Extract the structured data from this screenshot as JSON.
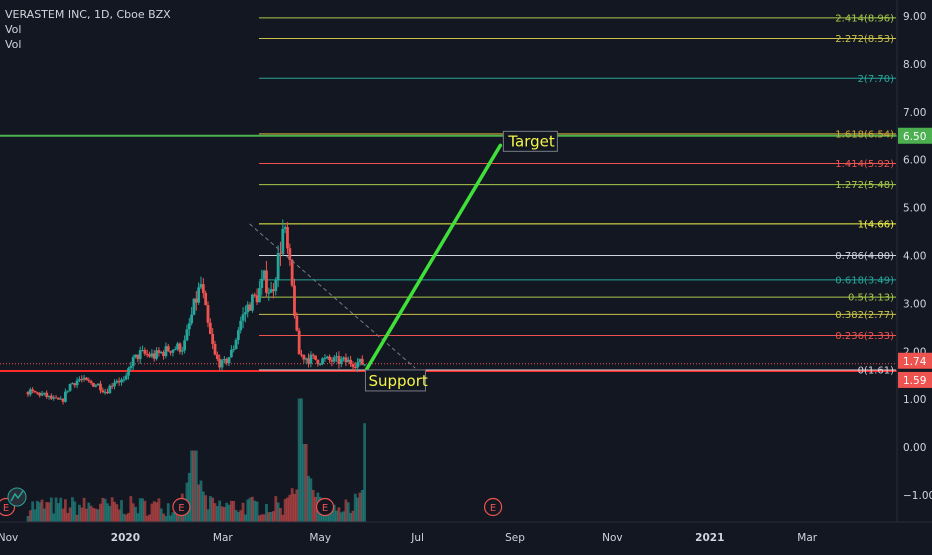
{
  "header": {
    "symbol_line": "VERASTEM INC, 1D, Cboe BZX",
    "vol_1": "Vol",
    "vol_2": "Vol"
  },
  "colors": {
    "background": "#131722",
    "up": "#26a69a",
    "down": "#ef5350",
    "target_line": "#3fe03a",
    "support_line": "#ff2a2a",
    "axis_text": "#d1d4dc"
  },
  "annotations": {
    "target_label": "Target",
    "support_label": "Support"
  },
  "chart_data": {
    "type": "candlestick",
    "symbol": "VERASTEM INC",
    "interval": "1D",
    "exchange": "Cboe BZX",
    "y_ticks": [
      "9.00",
      "8.00",
      "7.00",
      "6.00",
      "5.00",
      "4.00",
      "3.00",
      "2.00",
      "1.00",
      "0.00",
      "−1.00"
    ],
    "x_ticks": [
      "Nov",
      "2020",
      "Mar",
      "May",
      "Jul",
      "Sep",
      "Nov",
      "2021",
      "Mar"
    ],
    "ylim": [
      -1.5,
      9.3
    ],
    "price_badges": [
      {
        "text": "6.50",
        "value": 6.5,
        "color": "#4caf50"
      },
      {
        "text": "1.74",
        "value": 1.74,
        "color": "#ef5350"
      },
      {
        "text": "1.59",
        "value": 1.59,
        "color": "#ef5350"
      }
    ],
    "fib_levels": [
      {
        "label": "2.414(8.96)",
        "value": 8.96,
        "color": "#a7c94a"
      },
      {
        "label": "2.272(8.53)",
        "value": 8.53,
        "color": "#c9c14a"
      },
      {
        "label": "2(7.70)",
        "value": 7.7,
        "color": "#26a69a"
      },
      {
        "label": "1.618(6.54)",
        "value": 6.54,
        "color": "#d4a83a"
      },
      {
        "label": "1.414(5.92)",
        "value": 5.92,
        "color": "#ef5350"
      },
      {
        "label": "1.272(5.48)",
        "value": 5.48,
        "color": "#a7c94a"
      },
      {
        "label": "1(4.66)",
        "value": 4.66,
        "color": "#f5f54a"
      },
      {
        "label": "0.786(4.00)",
        "value": 4.0,
        "color": "#d1d4dc"
      },
      {
        "label": "0.618(3.49)",
        "value": 3.49,
        "color": "#26a69a"
      },
      {
        "label": "0.5(3.13)",
        "value": 3.13,
        "color": "#a7c94a"
      },
      {
        "label": "0.382(2.77)",
        "value": 2.77,
        "color": "#c9c14a"
      },
      {
        "label": "0.236(2.33)",
        "value": 2.33,
        "color": "#ef5350"
      },
      {
        "label": "0(1.61)",
        "value": 1.61,
        "color": "#d1d4dc"
      }
    ],
    "horizontal_lines": [
      {
        "value": 6.5,
        "color": "#4caf50"
      },
      {
        "value": 1.59,
        "color": "#ff2a2a"
      }
    ],
    "trend_arrow": {
      "from": {
        "month": 6.95,
        "price": 1.62
      },
      "to": {
        "month": 9.7,
        "price": 6.3
      }
    },
    "dashed_trendline": {
      "from": {
        "month": 4.55,
        "price": 4.66
      },
      "to": {
        "month": 7.95,
        "price": 1.65
      }
    },
    "price_series": [
      {
        "month": 0.0,
        "price": 1.15
      },
      {
        "month": 0.3,
        "price": 1.1
      },
      {
        "month": 0.5,
        "price": 1.0
      },
      {
        "month": 0.7,
        "price": 0.95
      },
      {
        "month": 0.85,
        "price": 1.3
      },
      {
        "month": 1.05,
        "price": 1.42
      },
      {
        "month": 1.2,
        "price": 1.35
      },
      {
        "month": 1.45,
        "price": 1.3
      },
      {
        "month": 1.6,
        "price": 1.15
      },
      {
        "month": 1.8,
        "price": 1.42
      },
      {
        "month": 2.0,
        "price": 1.35
      },
      {
        "month": 2.1,
        "price": 1.75
      },
      {
        "month": 2.3,
        "price": 1.95
      },
      {
        "month": 2.6,
        "price": 1.9
      },
      {
        "month": 2.9,
        "price": 2.05
      },
      {
        "month": 3.2,
        "price": 2.1
      },
      {
        "month": 3.4,
        "price": 2.9
      },
      {
        "month": 3.55,
        "price": 3.4
      },
      {
        "month": 3.7,
        "price": 2.5
      },
      {
        "month": 3.85,
        "price": 1.85
      },
      {
        "month": 4.0,
        "price": 1.7
      },
      {
        "month": 4.2,
        "price": 2.0
      },
      {
        "month": 4.35,
        "price": 2.6
      },
      {
        "month": 4.55,
        "price": 3.0
      },
      {
        "month": 4.7,
        "price": 3.15
      },
      {
        "month": 4.85,
        "price": 3.5
      },
      {
        "month": 5.0,
        "price": 3.2
      },
      {
        "month": 5.15,
        "price": 4.0
      },
      {
        "month": 5.25,
        "price": 4.6
      },
      {
        "month": 5.35,
        "price": 3.9
      },
      {
        "month": 5.45,
        "price": 3.1
      },
      {
        "month": 5.55,
        "price": 1.95
      },
      {
        "month": 5.75,
        "price": 1.85
      },
      {
        "month": 6.0,
        "price": 1.82
      },
      {
        "month": 6.3,
        "price": 1.8
      },
      {
        "month": 6.6,
        "price": 1.78
      },
      {
        "month": 6.95,
        "price": 1.74
      }
    ],
    "volume_spikes": [
      {
        "month": 5.6,
        "height": 0.95
      },
      {
        "month": 5.7,
        "height": 0.6
      },
      {
        "month": 6.95,
        "height": 0.76
      },
      {
        "month": 3.4,
        "height": 0.55
      }
    ],
    "event_markers": [
      {
        "month": 0.0,
        "label": "E"
      },
      {
        "month": 3.15,
        "label": "E"
      },
      {
        "month": 6.1,
        "label": "E"
      },
      {
        "month": 9.55,
        "label": "E"
      }
    ]
  }
}
